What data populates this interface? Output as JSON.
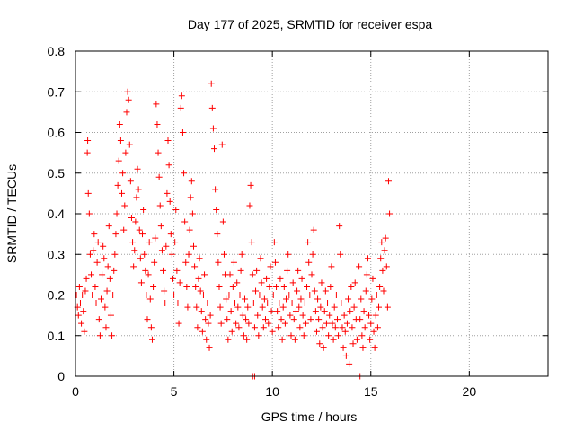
{
  "chart_data": {
    "type": "scatter",
    "title": "Day 177 of 2025, SRMTID for receiver espa",
    "xlabel": "GPS time / hours",
    "ylabel": "SRMTID / TECUs",
    "xlim": [
      0,
      24
    ],
    "ylim": [
      0,
      0.8
    ],
    "xticks": [
      0,
      5,
      10,
      15,
      20
    ],
    "yticks": [
      0,
      0.1,
      0.2,
      0.3,
      0.4,
      0.5,
      0.6,
      0.7,
      0.8
    ],
    "grid": true,
    "marker": "+",
    "color": "#ff0000",
    "series": [
      {
        "name": "SRMTID",
        "points": [
          [
            0.05,
            0.2
          ],
          [
            0.1,
            0.17
          ],
          [
            0.15,
            0.15
          ],
          [
            0.2,
            0.22
          ],
          [
            0.25,
            0.18
          ],
          [
            0.3,
            0.13
          ],
          [
            0.35,
            0.2
          ],
          [
            0.4,
            0.16
          ],
          [
            0.45,
            0.11
          ],
          [
            0.5,
            0.21
          ],
          [
            0.55,
            0.24
          ],
          [
            0.6,
            0.55
          ],
          [
            0.62,
            0.58
          ],
          [
            0.65,
            0.45
          ],
          [
            0.7,
            0.4
          ],
          [
            0.75,
            0.3
          ],
          [
            0.8,
            0.25
          ],
          [
            0.85,
            0.2
          ],
          [
            0.9,
            0.31
          ],
          [
            0.95,
            0.35
          ],
          [
            1.0,
            0.22
          ],
          [
            1.05,
            0.18
          ],
          [
            1.1,
            0.28
          ],
          [
            1.15,
            0.33
          ],
          [
            1.2,
            0.14
          ],
          [
            1.25,
            0.1
          ],
          [
            1.3,
            0.19
          ],
          [
            1.35,
            0.25
          ],
          [
            1.4,
            0.32
          ],
          [
            1.45,
            0.29
          ],
          [
            1.5,
            0.17
          ],
          [
            1.55,
            0.12
          ],
          [
            1.6,
            0.21
          ],
          [
            1.65,
            0.27
          ],
          [
            1.7,
            0.37
          ],
          [
            1.75,
            0.24
          ],
          [
            1.8,
            0.15
          ],
          [
            1.85,
            0.1
          ],
          [
            1.9,
            0.2
          ],
          [
            1.95,
            0.26
          ],
          [
            2.0,
            0.3
          ],
          [
            2.05,
            0.35
          ],
          [
            2.1,
            0.4
          ],
          [
            2.15,
            0.47
          ],
          [
            2.2,
            0.53
          ],
          [
            2.25,
            0.62
          ],
          [
            2.3,
            0.58
          ],
          [
            2.35,
            0.45
          ],
          [
            2.4,
            0.5
          ],
          [
            2.45,
            0.36
          ],
          [
            2.5,
            0.42
          ],
          [
            2.55,
            0.55
          ],
          [
            2.6,
            0.65
          ],
          [
            2.65,
            0.7
          ],
          [
            2.7,
            0.68
          ],
          [
            2.75,
            0.57
          ],
          [
            2.8,
            0.48
          ],
          [
            2.85,
            0.39
          ],
          [
            2.9,
            0.33
          ],
          [
            2.95,
            0.27
          ],
          [
            3.0,
            0.31
          ],
          [
            3.05,
            0.38
          ],
          [
            3.1,
            0.44
          ],
          [
            3.15,
            0.51
          ],
          [
            3.2,
            0.46
          ],
          [
            3.25,
            0.36
          ],
          [
            3.3,
            0.29
          ],
          [
            3.35,
            0.23
          ],
          [
            3.4,
            0.35
          ],
          [
            3.45,
            0.41
          ],
          [
            3.5,
            0.3
          ],
          [
            3.55,
            0.26
          ],
          [
            3.6,
            0.2
          ],
          [
            3.65,
            0.14
          ],
          [
            3.7,
            0.25
          ],
          [
            3.75,
            0.33
          ],
          [
            3.8,
            0.19
          ],
          [
            3.85,
            0.12
          ],
          [
            3.9,
            0.09
          ],
          [
            3.95,
            0.22
          ],
          [
            4.0,
            0.28
          ],
          [
            4.05,
            0.34
          ],
          [
            4.1,
            0.67
          ],
          [
            4.15,
            0.62
          ],
          [
            4.2,
            0.55
          ],
          [
            4.25,
            0.49
          ],
          [
            4.3,
            0.42
          ],
          [
            4.35,
            0.37
          ],
          [
            4.4,
            0.31
          ],
          [
            4.45,
            0.26
          ],
          [
            4.5,
            0.21
          ],
          [
            4.55,
            0.18
          ],
          [
            4.6,
            0.32
          ],
          [
            4.65,
            0.45
          ],
          [
            4.7,
            0.58
          ],
          [
            4.75,
            0.52
          ],
          [
            4.8,
            0.43
          ],
          [
            4.85,
            0.35
          ],
          [
            4.9,
            0.3
          ],
          [
            4.95,
            0.24
          ],
          [
            5.0,
            0.2
          ],
          [
            5.05,
            0.33
          ],
          [
            5.1,
            0.41
          ],
          [
            5.15,
            0.26
          ],
          [
            5.2,
            0.18
          ],
          [
            5.25,
            0.13
          ],
          [
            5.3,
            0.23
          ],
          [
            5.35,
            0.66
          ],
          [
            5.4,
            0.69
          ],
          [
            5.45,
            0.6
          ],
          [
            5.5,
            0.5
          ],
          [
            5.55,
            0.38
          ],
          [
            5.6,
            0.28
          ],
          [
            5.65,
            0.22
          ],
          [
            5.7,
            0.17
          ],
          [
            5.75,
            0.3
          ],
          [
            5.8,
            0.36
          ],
          [
            5.85,
            0.44
          ],
          [
            5.9,
            0.48
          ],
          [
            5.95,
            0.4
          ],
          [
            6.0,
            0.32
          ],
          [
            6.05,
            0.27
          ],
          [
            6.1,
            0.22
          ],
          [
            6.15,
            0.17
          ],
          [
            6.2,
            0.12
          ],
          [
            6.25,
            0.24
          ],
          [
            6.3,
            0.29
          ],
          [
            6.35,
            0.21
          ],
          [
            6.4,
            0.16
          ],
          [
            6.45,
            0.11
          ],
          [
            6.5,
            0.2
          ],
          [
            6.55,
            0.25
          ],
          [
            6.6,
            0.14
          ],
          [
            6.65,
            0.09
          ],
          [
            6.7,
            0.18
          ],
          [
            6.75,
            0.13
          ],
          [
            6.8,
            0.07
          ],
          [
            6.85,
            0.15
          ],
          [
            6.9,
            0.72
          ],
          [
            6.95,
            0.66
          ],
          [
            7.0,
            0.61
          ],
          [
            7.05,
            0.56
          ],
          [
            7.1,
            0.46
          ],
          [
            7.15,
            0.41
          ],
          [
            7.2,
            0.35
          ],
          [
            7.25,
            0.28
          ],
          [
            7.3,
            0.22
          ],
          [
            7.35,
            0.17
          ],
          [
            7.4,
            0.13
          ],
          [
            7.45,
            0.57
          ],
          [
            7.5,
            0.38
          ],
          [
            7.55,
            0.3
          ],
          [
            7.6,
            0.25
          ],
          [
            7.65,
            0.19
          ],
          [
            7.7,
            0.14
          ],
          [
            7.75,
            0.09
          ],
          [
            7.8,
            0.2
          ],
          [
            7.85,
            0.25
          ],
          [
            7.9,
            0.16
          ],
          [
            7.95,
            0.11
          ],
          [
            8.0,
            0.22
          ],
          [
            8.05,
            0.28
          ],
          [
            8.1,
            0.18
          ],
          [
            8.15,
            0.13
          ],
          [
            8.2,
            0.23
          ],
          [
            8.25,
            0.17
          ],
          [
            8.3,
            0.12
          ],
          [
            8.35,
            0.2
          ],
          [
            8.4,
            0.26
          ],
          [
            8.45,
            0.3
          ],
          [
            8.5,
            0.15
          ],
          [
            8.55,
            0.1
          ],
          [
            8.6,
            0.19
          ],
          [
            8.65,
            0.14
          ],
          [
            8.7,
            0.09
          ],
          [
            8.75,
            0.17
          ],
          [
            8.8,
            0.13
          ],
          [
            8.85,
            0.42
          ],
          [
            8.9,
            0.47
          ],
          [
            8.95,
            0.33
          ],
          [
            9.0,
            0.25
          ],
          [
            9.05,
            0.18
          ],
          [
            9.1,
            0.12
          ],
          [
            9.15,
            0.21
          ],
          [
            9.2,
            0.26
          ],
          [
            9.25,
            0.15
          ],
          [
            9.3,
            0.1
          ],
          [
            9.35,
            0.2
          ],
          [
            9.4,
            0.29
          ],
          [
            9.45,
            0.23
          ],
          [
            9.5,
            0.17
          ],
          [
            9.55,
            0.12
          ],
          [
            9.6,
            0.19
          ],
          [
            9.65,
            0.14
          ],
          [
            9.7,
            0.24
          ],
          [
            9.75,
            0.18
          ],
          [
            9.8,
            0.13
          ],
          [
            9.85,
            0.22
          ],
          [
            9.9,
            0.27
          ],
          [
            9.95,
            0.16
          ],
          [
            10.0,
            0.11
          ],
          [
            10.05,
            0.2
          ],
          [
            10.1,
            0.33
          ],
          [
            10.15,
            0.28
          ],
          [
            10.2,
            0.22
          ],
          [
            10.25,
            0.16
          ],
          [
            10.3,
            0.12
          ],
          [
            10.35,
            0.18
          ],
          [
            10.4,
            0.24
          ],
          [
            10.45,
            0.14
          ],
          [
            10.5,
            0.09
          ],
          [
            10.55,
            0.17
          ],
          [
            10.6,
            0.22
          ],
          [
            10.65,
            0.13
          ],
          [
            10.7,
            0.19
          ],
          [
            10.75,
            0.26
          ],
          [
            10.8,
            0.3
          ],
          [
            10.85,
            0.2
          ],
          [
            10.9,
            0.15
          ],
          [
            10.95,
            0.1
          ],
          [
            11.0,
            0.18
          ],
          [
            11.05,
            0.23
          ],
          [
            11.1,
            0.14
          ],
          [
            11.15,
            0.09
          ],
          [
            11.2,
            0.16
          ],
          [
            11.25,
            0.21
          ],
          [
            11.3,
            0.26
          ],
          [
            11.35,
            0.17
          ],
          [
            11.4,
            0.12
          ],
          [
            11.45,
            0.19
          ],
          [
            11.5,
            0.24
          ],
          [
            11.55,
            0.15
          ],
          [
            11.6,
            0.1
          ],
          [
            11.65,
            0.18
          ],
          [
            11.7,
            0.13
          ],
          [
            11.75,
            0.22
          ],
          [
            11.8,
            0.33
          ],
          [
            11.85,
            0.28
          ],
          [
            11.9,
            0.2
          ],
          [
            11.95,
            0.14
          ],
          [
            12.0,
            0.25
          ],
          [
            12.05,
            0.3
          ],
          [
            12.1,
            0.36
          ],
          [
            12.15,
            0.21
          ],
          [
            12.2,
            0.16
          ],
          [
            12.25,
            0.11
          ],
          [
            12.3,
            0.19
          ],
          [
            12.35,
            0.14
          ],
          [
            12.4,
            0.08
          ],
          [
            12.45,
            0.17
          ],
          [
            12.5,
            0.23
          ],
          [
            12.55,
            0.12
          ],
          [
            12.6,
            0.07
          ],
          [
            12.65,
            0.16
          ],
          [
            12.7,
            0.21
          ],
          [
            12.75,
            0.13
          ],
          [
            12.8,
            0.18
          ],
          [
            12.85,
            0.1
          ],
          [
            12.9,
            0.15
          ],
          [
            12.95,
            0.22
          ],
          [
            13.0,
            0.27
          ],
          [
            13.05,
            0.13
          ],
          [
            13.1,
            0.09
          ],
          [
            13.15,
            0.17
          ],
          [
            13.2,
            0.12
          ],
          [
            13.25,
            0.2
          ],
          [
            13.3,
            0.14
          ],
          [
            13.35,
            0.1
          ],
          [
            13.4,
            0.37
          ],
          [
            13.45,
            0.3
          ],
          [
            13.5,
            0.18
          ],
          [
            13.55,
            0.12
          ],
          [
            13.6,
            0.07
          ],
          [
            13.65,
            0.15
          ],
          [
            13.7,
            0.11
          ],
          [
            13.75,
            0.05
          ],
          [
            13.8,
            0.13
          ],
          [
            13.85,
            0.19
          ],
          [
            13.9,
            0.03
          ],
          [
            13.95,
            0.16
          ],
          [
            14.0,
            0.22
          ],
          [
            14.05,
            0.12
          ],
          [
            14.1,
            0.08
          ],
          [
            14.15,
            0.17
          ],
          [
            14.2,
            0.23
          ],
          [
            14.25,
            0.14
          ],
          [
            14.3,
            0.09
          ],
          [
            14.35,
            0.18
          ],
          [
            14.4,
            0.27
          ],
          [
            14.45,
            0.14
          ],
          [
            14.5,
            0.19
          ],
          [
            14.55,
            0.1
          ],
          [
            14.6,
            0.07
          ],
          [
            14.65,
            0.16
          ],
          [
            14.7,
            0.12
          ],
          [
            14.75,
            0.21
          ],
          [
            14.8,
            0.25
          ],
          [
            14.85,
            0.29
          ],
          [
            14.9,
            0.15
          ],
          [
            14.95,
            0.09
          ],
          [
            15.0,
            0.13
          ],
          [
            15.05,
            0.19
          ],
          [
            15.1,
            0.24
          ],
          [
            15.15,
            0.11
          ],
          [
            15.2,
            0.07
          ],
          [
            15.25,
            0.15
          ],
          [
            15.3,
            0.2
          ],
          [
            15.35,
            0.12
          ],
          [
            15.4,
            0.17
          ],
          [
            15.45,
            0.22
          ],
          [
            15.5,
            0.29
          ],
          [
            15.55,
            0.33
          ],
          [
            15.6,
            0.26
          ],
          [
            15.65,
            0.21
          ],
          [
            15.7,
            0.31
          ],
          [
            15.75,
            0.34
          ],
          [
            15.8,
            0.27
          ],
          [
            15.85,
            0.17
          ],
          [
            15.9,
            0.48
          ],
          [
            15.95,
            0.4
          ],
          [
            9.0,
            0.0
          ],
          [
            9.1,
            0.0
          ],
          [
            14.45,
            0.0
          ]
        ]
      }
    ]
  }
}
